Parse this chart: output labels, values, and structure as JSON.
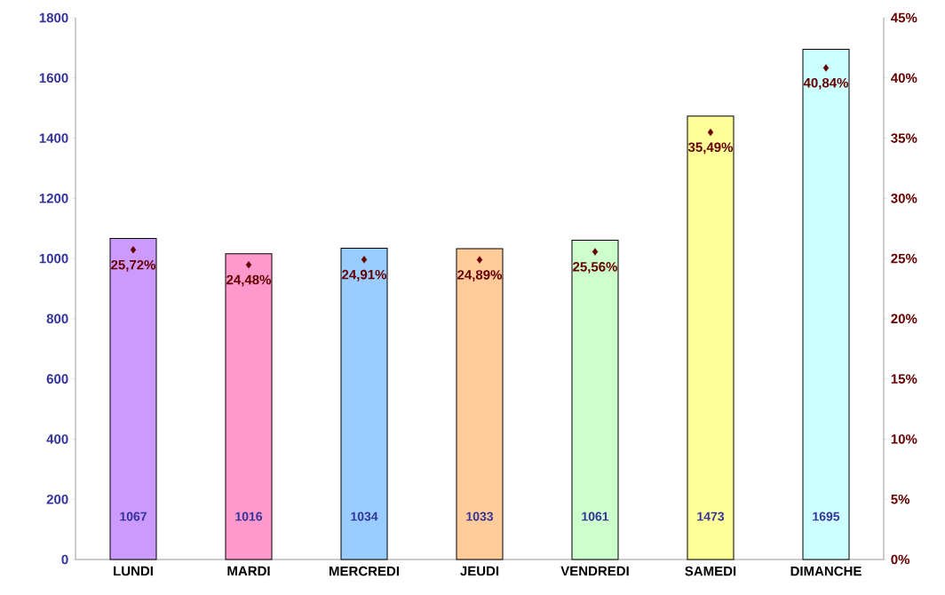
{
  "chart_data": {
    "type": "bar",
    "categories": [
      "LUNDI",
      "MARDI",
      "MERCREDI",
      "JEUDI",
      "VENDREDI",
      "SAMEDI",
      "DIMANCHE"
    ],
    "series": [
      {
        "colors": [
          "#cc99ff",
          "#ff99cc",
          "#99ccff",
          "#ffcc99",
          "#ccffcc",
          "#ffff99",
          "#ccffff"
        ],
        "values": [
          1067,
          1016,
          1034,
          1033,
          1061,
          1473,
          1695
        ]
      },
      {
        "type": "scatter",
        "axis": "y2",
        "color": "#660000",
        "values": [
          25.72,
          24.48,
          24.91,
          24.89,
          25.56,
          35.49,
          40.84
        ],
        "value_labels": [
          "25,72%",
          "24,48%",
          "24,91%",
          "24,89%",
          "25,56%",
          "35,49%",
          "40,84%"
        ]
      }
    ],
    "data_labels": true,
    "marker": "diamond",
    "grid": false,
    "ylim": [
      0,
      1800
    ],
    "yticks": [
      0,
      200,
      400,
      600,
      800,
      1000,
      1200,
      1400,
      1600,
      1800
    ],
    "y2lim": [
      0,
      45
    ],
    "y2ticks": [
      {
        "value": 0,
        "label": "0%"
      },
      {
        "value": 5,
        "label": "5%"
      },
      {
        "value": 10,
        "label": "10%"
      },
      {
        "value": 15,
        "label": "15%"
      },
      {
        "value": 20,
        "label": "20%"
      },
      {
        "value": 25,
        "label": "25%"
      },
      {
        "value": 30,
        "label": "30%"
      },
      {
        "value": 35,
        "label": "35%"
      },
      {
        "value": 40,
        "label": "40%"
      },
      {
        "value": 45,
        "label": "45%"
      }
    ]
  }
}
